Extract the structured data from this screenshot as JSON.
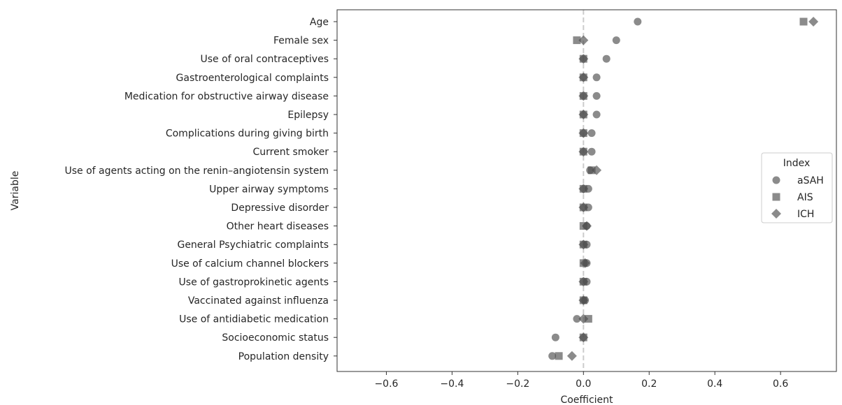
{
  "chart_data": {
    "type": "scatter",
    "xlabel": "Coefficient",
    "ylabel": "Variable",
    "xlim": [
      -0.75,
      0.77
    ],
    "xticks": [
      -0.6,
      -0.4,
      -0.2,
      0.0,
      0.2,
      0.4,
      0.6
    ],
    "xtick_labels": [
      "−0.6",
      "−0.4",
      "−0.2",
      "0.0",
      "0.2",
      "0.4",
      "0.6"
    ],
    "reference_line_x": 0,
    "grid": false,
    "legend": {
      "title": "Index",
      "placement": "right"
    },
    "categories": [
      "Age",
      "Female sex",
      "Use of oral contraceptives",
      "Gastroenterological complaints",
      "Medication for obstructive airway disease",
      "Epilepsy",
      "Complications during giving birth",
      "Current smoker",
      "Use of agents acting on the renin–angiotensin system",
      "Upper airway symptoms",
      "Depressive disorder",
      "Other heart diseases",
      "General Psychiatric complaints",
      "Use of calcium channel blockers",
      "Use of gastroprokinetic agents",
      "Vaccinated against influenza",
      "Use of antidiabetic medication",
      "Socioeconomic status",
      "Population density"
    ],
    "series": [
      {
        "name": "aSAH",
        "marker": "circle",
        "values": [
          0.165,
          0.1,
          0.07,
          0.04,
          0.04,
          0.04,
          0.025,
          0.025,
          0.02,
          0.015,
          0.015,
          0.01,
          0.01,
          0.01,
          0.01,
          0.005,
          -0.02,
          -0.085,
          -0.095
        ]
      },
      {
        "name": "AIS",
        "marker": "square",
        "values": [
          0.67,
          -0.02,
          0.0,
          0.0,
          0.0,
          0.0,
          0.0,
          0.0,
          0.025,
          0.0,
          0.0,
          0.0,
          0.0,
          0.0,
          0.0,
          0.0,
          0.015,
          0.0,
          -0.075
        ]
      },
      {
        "name": "ICH",
        "marker": "diamond",
        "values": [
          0.7,
          0.0,
          0.0,
          0.0,
          0.0,
          0.0,
          0.0,
          0.0,
          0.04,
          0.0,
          0.0,
          0.01,
          0.0,
          0.005,
          0.0,
          0.0,
          0.0,
          0.0,
          -0.035
        ]
      }
    ],
    "colors": {
      "marker": "#4d4d4d",
      "axis": "#333333",
      "reference_line": "#cccccc"
    }
  }
}
